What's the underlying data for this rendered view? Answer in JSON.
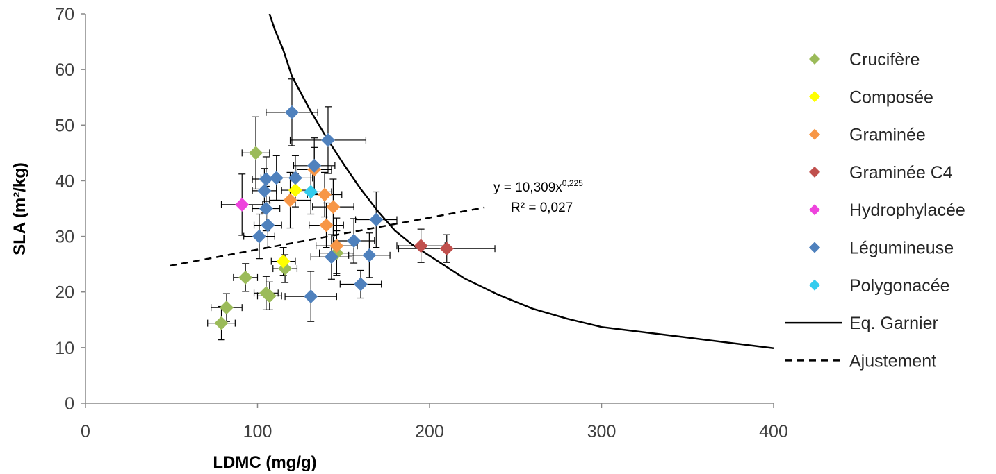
{
  "chart_data": {
    "type": "scatter",
    "title": "",
    "xlabel": "LDMC (mg/g)",
    "ylabel": "SLA (m²/kg)",
    "xlim": [
      0,
      400
    ],
    "ylim": [
      0,
      70
    ],
    "xticks": [
      0,
      100,
      200,
      300,
      400
    ],
    "yticks": [
      0,
      10,
      20,
      30,
      40,
      50,
      60,
      70
    ],
    "grid": false,
    "legend_position": "right",
    "series": [
      {
        "name": "Crucifère",
        "color": "#9BBB59",
        "marker": "diamond",
        "points": [
          {
            "x": 99,
            "y": 45,
            "xerr": 8,
            "yerr": 6.5
          },
          {
            "x": 93,
            "y": 22.6,
            "xerr": 7,
            "yerr": 2.5
          },
          {
            "x": 105,
            "y": 19.8,
            "xerr": 7,
            "yerr": 3
          },
          {
            "x": 107,
            "y": 19.3,
            "xerr": 7,
            "yerr": 2.5
          },
          {
            "x": 116,
            "y": 24.2,
            "xerr": 7,
            "yerr": 2.5
          },
          {
            "x": 82,
            "y": 17.2,
            "xerr": 9,
            "yerr": 2.5
          },
          {
            "x": 79,
            "y": 14.4,
            "xerr": 8,
            "yerr": 3
          },
          {
            "x": 146,
            "y": 27,
            "xerr": 10,
            "yerr": 4
          }
        ]
      },
      {
        "name": "Composée",
        "color": "#FFFF00",
        "marker": "diamond",
        "points": [
          {
            "x": 115,
            "y": 25.5,
            "xerr": 7,
            "yerr": 2.5
          },
          {
            "x": 122,
            "y": 38.3,
            "xerr": 8,
            "yerr": 3
          }
        ]
      },
      {
        "name": "Graminée",
        "color": "#F79646",
        "marker": "diamond",
        "points": [
          {
            "x": 119,
            "y": 36.5,
            "xerr": 12,
            "yerr": 5
          },
          {
            "x": 133,
            "y": 42,
            "xerr": 10,
            "yerr": 4
          },
          {
            "x": 139,
            "y": 37.5,
            "xerr": 10,
            "yerr": 4
          },
          {
            "x": 144,
            "y": 35.3,
            "xerr": 12,
            "yerr": 5
          },
          {
            "x": 140,
            "y": 32,
            "xerr": 10,
            "yerr": 4
          },
          {
            "x": 146,
            "y": 28.3,
            "xerr": 12,
            "yerr": 5
          }
        ]
      },
      {
        "name": "Graminée C4",
        "color": "#C0504D",
        "marker": "diamond",
        "points": [
          {
            "x": 195,
            "y": 28.3,
            "xerr": 14,
            "yerr": 3
          },
          {
            "x": 210,
            "y": 27.8,
            "xerr": 28,
            "yerr": 2.5
          }
        ]
      },
      {
        "name": "Hydrophylacée",
        "color": "#EE44DD",
        "marker": "diamond",
        "points": [
          {
            "x": 91,
            "y": 35.7,
            "xerr": 12,
            "yerr": 5.5
          }
        ]
      },
      {
        "name": "Légumineuse",
        "color": "#4F81BD",
        "marker": "diamond",
        "points": [
          {
            "x": 120,
            "y": 52.3,
            "xerr": 15,
            "yerr": 6
          },
          {
            "x": 141,
            "y": 47.3,
            "xerr": 22,
            "yerr": 6
          },
          {
            "x": 133,
            "y": 42.7,
            "xerr": 12,
            "yerr": 5
          },
          {
            "x": 105,
            "y": 40.3,
            "xerr": 8,
            "yerr": 4
          },
          {
            "x": 111,
            "y": 40.5,
            "xerr": 9,
            "yerr": 4
          },
          {
            "x": 122,
            "y": 40.5,
            "xerr": 10,
            "yerr": 4
          },
          {
            "x": 104,
            "y": 38.2,
            "xerr": 7,
            "yerr": 4
          },
          {
            "x": 105,
            "y": 35,
            "xerr": 8,
            "yerr": 4
          },
          {
            "x": 106,
            "y": 32,
            "xerr": 8,
            "yerr": 4
          },
          {
            "x": 101,
            "y": 30,
            "xerr": 9,
            "yerr": 4
          },
          {
            "x": 169,
            "y": 33,
            "xerr": 12,
            "yerr": 5
          },
          {
            "x": 156,
            "y": 29.2,
            "xerr": 12,
            "yerr": 4
          },
          {
            "x": 143,
            "y": 26.3,
            "xerr": 12,
            "yerr": 4
          },
          {
            "x": 165,
            "y": 26.6,
            "xerr": 12,
            "yerr": 4
          },
          {
            "x": 160,
            "y": 21.4,
            "xerr": 12,
            "yerr": 2.5
          },
          {
            "x": 131,
            "y": 19.2,
            "xerr": 15,
            "yerr": 4.5
          }
        ]
      },
      {
        "name": "Polygonacée",
        "color": "#33CCEE",
        "marker": "diamond",
        "points": [
          {
            "x": 131,
            "y": 38,
            "xerr": 12,
            "yerr": 4
          }
        ]
      }
    ],
    "lines": [
      {
        "name": "Eq. Garnier",
        "style": "solid",
        "color": "#000000",
        "points": [
          {
            "x": 107,
            "y": 70
          },
          {
            "x": 110,
            "y": 67.2
          },
          {
            "x": 115,
            "y": 63.5
          },
          {
            "x": 120,
            "y": 58.8
          },
          {
            "x": 130,
            "y": 53
          },
          {
            "x": 140,
            "y": 47.8
          },
          {
            "x": 150,
            "y": 43
          },
          {
            "x": 160,
            "y": 38.5
          },
          {
            "x": 170,
            "y": 34.5
          },
          {
            "x": 180,
            "y": 31
          },
          {
            "x": 190,
            "y": 28.5
          },
          {
            "x": 200,
            "y": 26.5
          },
          {
            "x": 220,
            "y": 22.5
          },
          {
            "x": 240,
            "y": 19.5
          },
          {
            "x": 260,
            "y": 17
          },
          {
            "x": 280,
            "y": 15.2
          },
          {
            "x": 300,
            "y": 13.7
          },
          {
            "x": 350,
            "y": 11.8
          },
          {
            "x": 400,
            "y": 9.9
          }
        ]
      },
      {
        "name": "Ajustement",
        "style": "dashed",
        "color": "#000000",
        "points": [
          {
            "x": 49,
            "y": 24.7
          },
          {
            "x": 232,
            "y": 35.2
          }
        ]
      }
    ],
    "annotation": {
      "equation_base": "y = 10,309x",
      "equation_exponent": "0,225",
      "r2": "R² = 0,027"
    }
  }
}
